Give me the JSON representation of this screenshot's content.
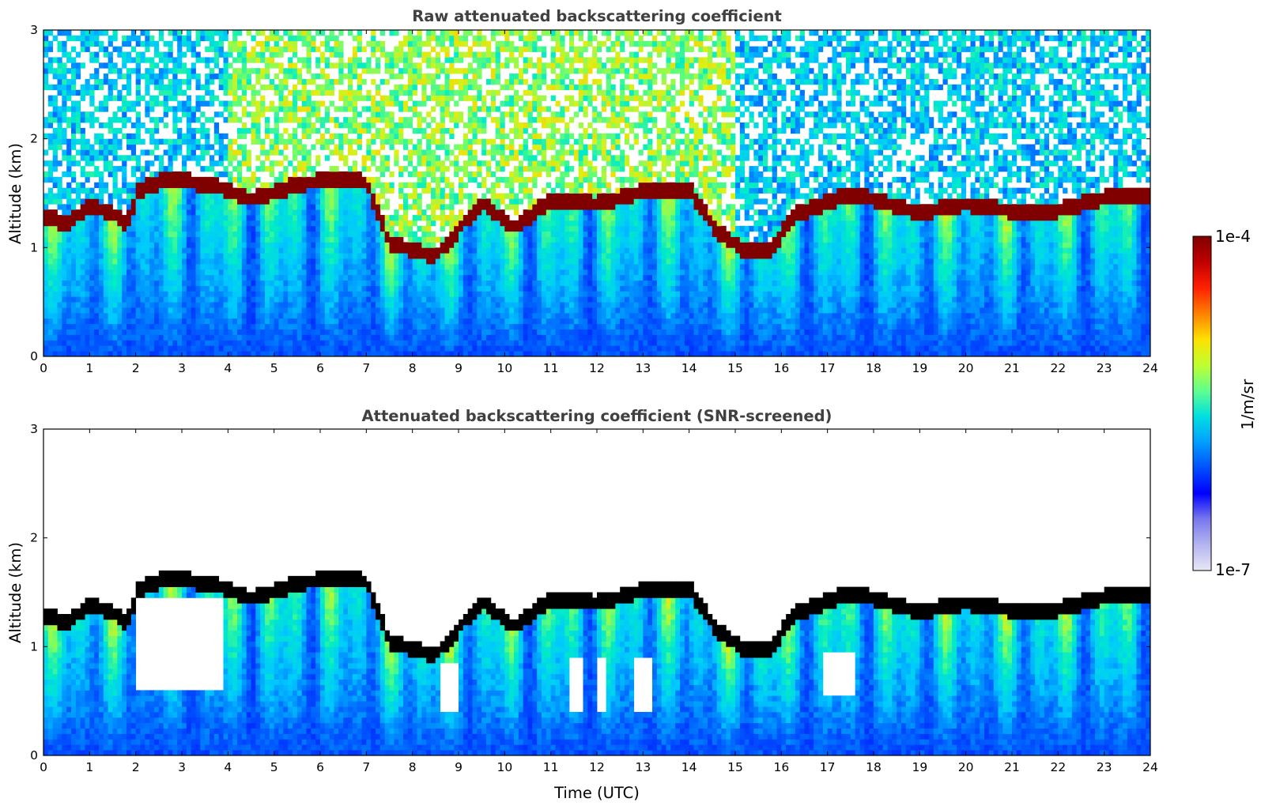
{
  "chart_data": [
    {
      "type": "heatmap",
      "title": "Raw attenuated backscattering coefficient",
      "xlabel": "",
      "ylabel": "Altitude (km)",
      "xlim": [
        0,
        24
      ],
      "ylim": [
        0,
        3
      ],
      "x_ticks": [
        "0",
        "1",
        "2",
        "3",
        "4",
        "5",
        "6",
        "7",
        "8",
        "9",
        "10",
        "11",
        "12",
        "13",
        "14",
        "15",
        "16",
        "17",
        "18",
        "19",
        "20",
        "21",
        "22",
        "23",
        "24"
      ],
      "y_ticks": [
        "0",
        "1",
        "2",
        "3"
      ],
      "colormap": "jet (log scale)",
      "cloud_base_km": [
        [
          0,
          1.3
        ],
        [
          0.5,
          1.22
        ],
        [
          1.0,
          1.38
        ],
        [
          1.5,
          1.32
        ],
        [
          1.8,
          1.2
        ],
        [
          2.05,
          1.52
        ],
        [
          2.6,
          1.62
        ],
        [
          3.0,
          1.62
        ],
        [
          3.8,
          1.56
        ],
        [
          4.5,
          1.44
        ],
        [
          5.5,
          1.58
        ],
        [
          6.5,
          1.64
        ],
        [
          7.0,
          1.6
        ],
        [
          7.5,
          1.05
        ],
        [
          8.5,
          0.92
        ],
        [
          9.5,
          1.42
        ],
        [
          10.2,
          1.18
        ],
        [
          11.0,
          1.44
        ],
        [
          12.0,
          1.4
        ],
        [
          13.0,
          1.52
        ],
        [
          14.0,
          1.54
        ],
        [
          14.6,
          1.15
        ],
        [
          15.2,
          0.98
        ],
        [
          15.8,
          0.98
        ],
        [
          16.2,
          1.28
        ],
        [
          17.5,
          1.5
        ],
        [
          18.5,
          1.38
        ],
        [
          19.0,
          1.32
        ],
        [
          20.0,
          1.4
        ],
        [
          21.0,
          1.34
        ],
        [
          22.0,
          1.34
        ],
        [
          23.0,
          1.46
        ],
        [
          24.0,
          1.46
        ]
      ]
    },
    {
      "type": "heatmap",
      "title": "Attenuated backscattering coefficient (SNR-screened)",
      "xlabel": "Time (UTC)",
      "ylabel": "Altitude (km)",
      "xlim": [
        0,
        24
      ],
      "ylim": [
        0,
        3
      ],
      "x_ticks": [
        "0",
        "1",
        "2",
        "3",
        "4",
        "5",
        "6",
        "7",
        "8",
        "9",
        "10",
        "11",
        "12",
        "13",
        "14",
        "15",
        "16",
        "17",
        "18",
        "19",
        "20",
        "21",
        "22",
        "23",
        "24"
      ],
      "y_ticks": [
        "0",
        "1",
        "2",
        "3"
      ],
      "colormap": "jet (log scale)",
      "masked_regions": [
        {
          "t0": 2.05,
          "t1": 3.9,
          "z0": 0.6,
          "z1": 1.45
        },
        {
          "t0": 7.3,
          "t1": 8.4,
          "z0": 1.3,
          "z1": 1.7
        },
        {
          "t0": 8.6,
          "t1": 9.0,
          "z0": 0.4,
          "z1": 0.85
        },
        {
          "t0": 11.4,
          "t1": 11.7,
          "z0": 0.4,
          "z1": 0.9
        },
        {
          "t0": 12.0,
          "t1": 12.2,
          "z0": 0.4,
          "z1": 0.9
        },
        {
          "t0": 12.8,
          "t1": 13.2,
          "z0": 0.4,
          "z1": 0.9
        },
        {
          "t0": 16.9,
          "t1": 17.6,
          "z0": 0.55,
          "z1": 0.95
        }
      ]
    }
  ],
  "colorbar": {
    "label": "1/m/sr",
    "max_label": "1e-4",
    "min_label": "1e-7",
    "scale": "log",
    "colors": [
      "#e8e8f5",
      "#b4b4f0",
      "#7878ee",
      "#0000ff",
      "#0050ff",
      "#00a0ff",
      "#00e0e0",
      "#60ff90",
      "#c0ff30",
      "#ffe000",
      "#ff8000",
      "#ff2000",
      "#c00000",
      "#800000"
    ]
  }
}
